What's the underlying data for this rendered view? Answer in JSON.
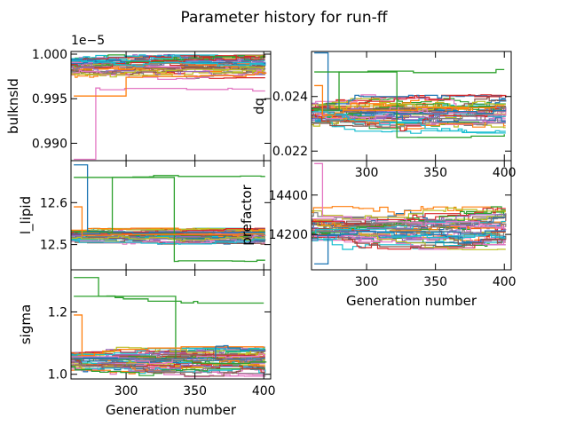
{
  "figure": {
    "title": "Parameter history for run-ff"
  },
  "chart_data": [
    {
      "type": "line",
      "name": "bulknsld",
      "ylabel": "bulknsld",
      "xlabel": "",
      "xlim": [
        260,
        405
      ],
      "ylim": [
        0.98805,
        1.0003
      ],
      "offset_text": "1e−5",
      "yticks": [
        0.99,
        0.995,
        1.0
      ],
      "ytick_labels": [
        "0.990",
        "0.995",
        "1.000"
      ],
      "xticks": [
        300,
        350,
        400
      ],
      "xtick_labels": [],
      "series_count": 40,
      "value_center": 0.9985,
      "value_spread": 0.0009,
      "notable": [
        {
          "color": "#e377c2",
          "start": 0.9882,
          "jump_at": 278,
          "end": 0.9962
        },
        {
          "color": "#ff7f0e",
          "start": 0.9953,
          "jump_at": 300,
          "end": 0.9974
        }
      ]
    },
    {
      "type": "line",
      "name": "dq",
      "ylabel": "dq",
      "xlabel": "",
      "xlim": [
        260,
        405
      ],
      "ylim": [
        0.02165,
        0.02565
      ],
      "yticks": [
        0.022,
        0.024
      ],
      "ytick_labels": [
        "0.022",
        "0.024"
      ],
      "xticks": [
        300,
        350,
        400
      ],
      "xtick_labels": [
        "300",
        "350",
        "400"
      ],
      "series_count": 40,
      "value_center": 0.02335,
      "value_spread": 0.00045,
      "notable": [
        {
          "color": "#1f77b4",
          "start": 0.0256,
          "jump_at": 272,
          "end": 0.0235
        },
        {
          "color": "#2ca02c",
          "start": 0.0235,
          "jump_at": 280,
          "end": 0.0249
        },
        {
          "color": "#2ca02c",
          "start": 0.0249,
          "jump_at": 322,
          "end": 0.0225
        },
        {
          "color": "#ff7f0e",
          "start": 0.0244,
          "jump_at": 268,
          "end": 0.0233
        }
      ]
    },
    {
      "type": "line",
      "name": "l_lipid",
      "ylabel": "l_lipid",
      "xlabel": "",
      "xlim": [
        260,
        405
      ],
      "ylim": [
        12.44,
        12.7
      ],
      "yticks": [
        12.5,
        12.6
      ],
      "ytick_labels": [
        "12.5",
        "12.6"
      ],
      "xticks": [
        300,
        350,
        400
      ],
      "xtick_labels": [],
      "series_count": 40,
      "value_center": 12.52,
      "value_spread": 0.012,
      "notable": [
        {
          "color": "#1f77b4",
          "start": 12.69,
          "jump_at": 272,
          "end": 12.53
        },
        {
          "color": "#2ca02c",
          "start": 12.53,
          "jump_at": 290,
          "end": 12.66
        },
        {
          "color": "#2ca02c",
          "start": 12.66,
          "jump_at": 335,
          "end": 12.46
        },
        {
          "color": "#ff7f0e",
          "start": 12.59,
          "jump_at": 268,
          "end": 12.52
        }
      ]
    },
    {
      "type": "line",
      "name": "prefactor",
      "ylabel": "prefactor",
      "xlabel": "Generation number",
      "xlim": [
        260,
        405
      ],
      "ylim": [
        14020,
        14575
      ],
      "yticks": [
        14200,
        14400
      ],
      "ytick_labels": [
        "14200",
        "14400"
      ],
      "xticks": [
        300,
        350,
        400
      ],
      "xtick_labels": [
        "300",
        "350",
        "400"
      ],
      "series_count": 40,
      "value_center": 14230,
      "value_spread": 70,
      "notable": [
        {
          "color": "#e377c2",
          "start": 14560,
          "jump_at": 268,
          "end": 14290
        },
        {
          "color": "#1f77b4",
          "start": 14050,
          "jump_at": 272,
          "end": 14200
        }
      ]
    },
    {
      "type": "line",
      "name": "sigma",
      "ylabel": "sigma",
      "xlabel": "Generation number",
      "xlim": [
        260,
        405
      ],
      "ylim": [
        0.985,
        1.335
      ],
      "yticks": [
        1.0,
        1.2
      ],
      "ytick_labels": [
        "1.0",
        "1.2"
      ],
      "xticks": [
        300,
        350,
        400
      ],
      "xtick_labels": [
        "300",
        "350",
        "400"
      ],
      "series_count": 40,
      "value_center": 1.04,
      "value_spread": 0.03,
      "notable": [
        {
          "color": "#2ca02c",
          "start": 1.31,
          "jump_at": 280,
          "end": 1.25
        },
        {
          "color": "#2ca02c",
          "start": 1.25,
          "jump_at": 336,
          "end": 1.05
        },
        {
          "color": "#ff7f0e",
          "start": 1.19,
          "jump_at": 268,
          "end": 1.06
        },
        {
          "color": "#1f77b4",
          "start": 1.05,
          "jump_at": 365,
          "end": 1.09
        }
      ]
    }
  ],
  "palette": [
    "#1f77b4",
    "#ff7f0e",
    "#2ca02c",
    "#d62728",
    "#9467bd",
    "#8c564b",
    "#e377c2",
    "#7f7f7f",
    "#bcbd22",
    "#17becf"
  ]
}
